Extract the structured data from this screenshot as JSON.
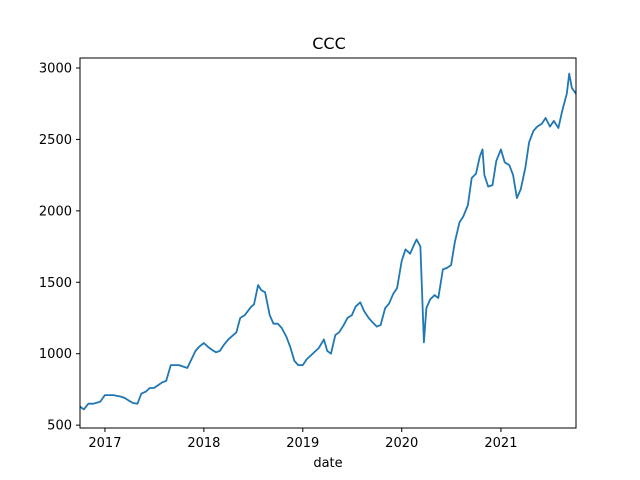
{
  "chart_data": {
    "type": "line",
    "title": "CCC",
    "xlabel": "date",
    "ylabel": "",
    "xlim": [
      "2016-10-01",
      "2021-10-05"
    ],
    "ylim": [
      480,
      3070
    ],
    "grid": false,
    "line_color": "#1f77b4",
    "x_ticks": [
      {
        "value": "2017-01-01",
        "label": "2017"
      },
      {
        "value": "2018-01-01",
        "label": "2018"
      },
      {
        "value": "2019-01-01",
        "label": "2019"
      },
      {
        "value": "2020-01-01",
        "label": "2020"
      },
      {
        "value": "2021-01-01",
        "label": "2021"
      }
    ],
    "y_ticks": [
      {
        "value": 500,
        "label": "500"
      },
      {
        "value": 1000,
        "label": "1000"
      },
      {
        "value": 1500,
        "label": "1500"
      },
      {
        "value": 2000,
        "label": "2000"
      },
      {
        "value": 2500,
        "label": "2500"
      },
      {
        "value": 3000,
        "label": "3000"
      }
    ],
    "series": [
      {
        "x": [
          "2016-10-01",
          "2016-10-15",
          "2016-11-01",
          "2016-11-20",
          "2016-12-15",
          "2017-01-01",
          "2017-02-01",
          "2017-03-01",
          "2017-03-15",
          "2017-04-01",
          "2017-04-15",
          "2017-05-01",
          "2017-05-15",
          "2017-06-01",
          "2017-06-15",
          "2017-07-01",
          "2017-08-01",
          "2017-08-15",
          "2017-09-01",
          "2017-10-01",
          "2017-11-01",
          "2017-12-01",
          "2017-12-15",
          "2018-01-01",
          "2018-01-15",
          "2018-02-01",
          "2018-02-15",
          "2018-03-01",
          "2018-03-15",
          "2018-04-01",
          "2018-05-01",
          "2018-05-15",
          "2018-06-01",
          "2018-06-25",
          "2018-07-05",
          "2018-07-20",
          "2018-08-01",
          "2018-08-15",
          "2018-09-01",
          "2018-09-15",
          "2018-10-01",
          "2018-10-15",
          "2018-11-01",
          "2018-11-15",
          "2018-12-01",
          "2018-12-15",
          "2019-01-01",
          "2019-01-15",
          "2019-02-01",
          "2019-03-01",
          "2019-03-20",
          "2019-04-01",
          "2019-04-15",
          "2019-05-01",
          "2019-05-15",
          "2019-06-01",
          "2019-06-15",
          "2019-07-01",
          "2019-07-15",
          "2019-08-01",
          "2019-08-15",
          "2019-09-01",
          "2019-09-15",
          "2019-10-01",
          "2019-10-15",
          "2019-11-01",
          "2019-11-15",
          "2019-12-01",
          "2019-12-15",
          "2020-01-01",
          "2020-01-15",
          "2020-02-01",
          "2020-02-15",
          "2020-02-25",
          "2020-03-10",
          "2020-03-23",
          "2020-04-01",
          "2020-04-15",
          "2020-05-01",
          "2020-05-15",
          "2020-06-01",
          "2020-06-15",
          "2020-07-01",
          "2020-07-15",
          "2020-08-01",
          "2020-08-15",
          "2020-09-01",
          "2020-09-15",
          "2020-10-01",
          "2020-10-15",
          "2020-10-25",
          "2020-11-01",
          "2020-11-15",
          "2020-12-01",
          "2020-12-15",
          "2021-01-01",
          "2021-01-15",
          "2021-02-01",
          "2021-02-15",
          "2021-03-01",
          "2021-03-15",
          "2021-04-01",
          "2021-04-15",
          "2021-05-01",
          "2021-05-15",
          "2021-06-01",
          "2021-06-15",
          "2021-07-01",
          "2021-07-15",
          "2021-08-01",
          "2021-08-15",
          "2021-09-01",
          "2021-09-10",
          "2021-09-20",
          "2021-10-05"
        ],
        "y": [
          630,
          610,
          650,
          650,
          665,
          710,
          710,
          700,
          690,
          670,
          655,
          650,
          720,
          735,
          760,
          760,
          800,
          810,
          920,
          920,
          900,
          1020,
          1050,
          1075,
          1050,
          1025,
          1010,
          1020,
          1060,
          1100,
          1150,
          1250,
          1270,
          1330,
          1345,
          1480,
          1445,
          1430,
          1270,
          1210,
          1210,
          1180,
          1120,
          1050,
          950,
          920,
          920,
          960,
          990,
          1040,
          1100,
          1020,
          1000,
          1130,
          1150,
          1200,
          1250,
          1270,
          1330,
          1360,
          1300,
          1250,
          1220,
          1190,
          1200,
          1320,
          1350,
          1420,
          1460,
          1650,
          1730,
          1700,
          1760,
          1800,
          1750,
          1080,
          1320,
          1380,
          1410,
          1390,
          1590,
          1600,
          1620,
          1780,
          1920,
          1960,
          2040,
          2230,
          2260,
          2380,
          2430,
          2250,
          2170,
          2180,
          2350,
          2430,
          2340,
          2320,
          2250,
          2090,
          2150,
          2300,
          2480,
          2560,
          2590,
          2610,
          2650,
          2590,
          2630,
          2580,
          2700,
          2820,
          2960,
          2860,
          2820
        ]
      }
    ]
  }
}
